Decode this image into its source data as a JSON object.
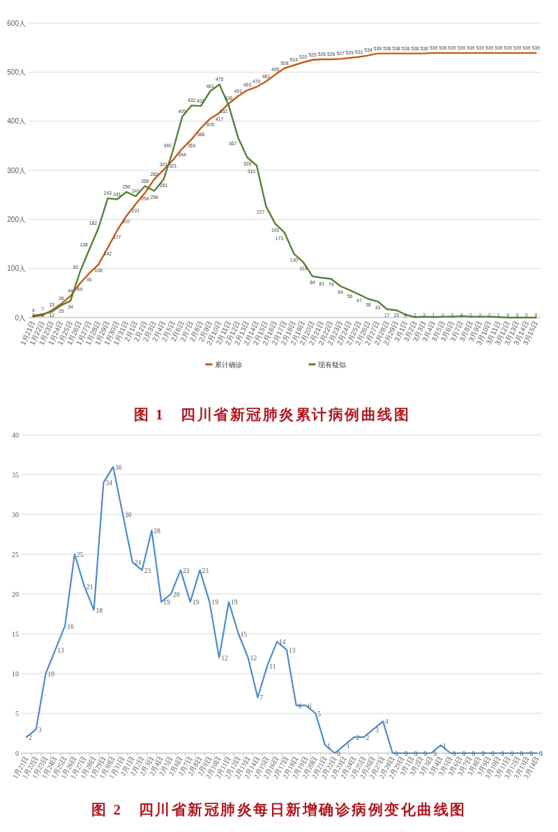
{
  "chart_data": [
    {
      "type": "line",
      "title": "图 1　四川省新冠肺炎累计病例曲线图",
      "categories": [
        "1月21日",
        "1月22日",
        "1月23日",
        "1月24日",
        "1月25日",
        "1月26日",
        "1月27日",
        "1月28日",
        "1月29日",
        "1月30日",
        "1月31日",
        "2月1日",
        "2月2日",
        "2月3日",
        "2月4日",
        "2月5日",
        "2月6日",
        "2月7日",
        "2月8日",
        "2月9日",
        "2月10日",
        "2月11日",
        "2月12日",
        "2月13日",
        "2月14日",
        "2月15日",
        "2月16日",
        "2月17日",
        "2月18日",
        "2月19日",
        "2月20日",
        "2月21日",
        "2月22日",
        "2月23日",
        "2月24日",
        "2月25日",
        "2月26日",
        "2月27日",
        "2月28日",
        "2月29日",
        "3月1日",
        "3月2日",
        "3月3日",
        "3月4日",
        "3月5日",
        "3月6日",
        "3月7日",
        "3月8日",
        "3月9日",
        "3月10日",
        "3月11日",
        "3月12日",
        "3月13日",
        "3月14日",
        "3月15日"
      ],
      "series": [
        {
          "name": "累计确诊",
          "color": "#c55a11",
          "values": [
            2,
            5,
            15,
            28,
            44,
            69,
            90,
            108,
            142,
            177,
            207,
            231,
            254,
            282,
            301,
            321,
            344,
            363,
            386,
            405,
            417,
            436,
            451,
            463,
            470,
            481,
            495,
            508,
            514,
            520,
            525,
            526,
            526,
            527,
            529,
            531,
            534,
            538,
            538,
            538,
            538,
            538,
            538,
            539,
            539,
            539,
            539,
            539,
            539,
            539,
            539,
            539,
            539,
            539,
            539
          ]
        },
        {
          "name": "现有疑似",
          "color": "#548235",
          "values": [
            4,
            7,
            12,
            25,
            34,
            92,
            138,
            182,
            243,
            241,
            256,
            247,
            268,
            258,
            281,
            340,
            409,
            432,
            431,
            461,
            475,
            432,
            367,
            326,
            310,
            227,
            191,
            173,
            130,
            113,
            84,
            81,
            79,
            64,
            56,
            47,
            38,
            33,
            17,
            15,
            6,
            1,
            2,
            1,
            2,
            2,
            3,
            2,
            2,
            2,
            1,
            0,
            0,
            0,
            0
          ]
        }
      ],
      "ylim": [
        0,
        600
      ],
      "yticks": [
        {
          "value": 0,
          "label": "0人"
        },
        {
          "value": 100,
          "label": "100人"
        },
        {
          "value": 200,
          "label": "200人"
        },
        {
          "value": 300,
          "label": "300人"
        },
        {
          "value": 400,
          "label": "400人"
        },
        {
          "value": 500,
          "label": "500人"
        },
        {
          "value": 600,
          "label": "600人"
        }
      ],
      "grid": "y",
      "legend": "bottom",
      "data_labels": true
    },
    {
      "type": "line",
      "title": "图 2　四川省新冠肺炎每日新增确诊病例变化曲线图",
      "categories": [
        "1月21日",
        "1月22日",
        "1月23日",
        "1月24日",
        "1月25日",
        "1月26日",
        "1月27日",
        "1月28日",
        "1月29日",
        "1月30日",
        "1月31日",
        "2月1日",
        "2月2日",
        "2月3日",
        "2月4日",
        "2月5日",
        "2月6日",
        "2月7日",
        "2月8日",
        "2月9日",
        "2月10日",
        "2月11日",
        "2月12日",
        "2月13日",
        "2月14日",
        "2月15日",
        "2月16日",
        "2月17日",
        "2月18日",
        "2月19日",
        "2月20日",
        "2月21日",
        "2月22日",
        "2月23日",
        "2月24日",
        "2月25日",
        "2月26日",
        "2月27日",
        "2月28日",
        "2月29日",
        "3月1日",
        "3月2日",
        "3月3日",
        "3月4日",
        "3月5日",
        "3月6日",
        "3月7日",
        "3月8日",
        "3月9日",
        "3月10日",
        "3月11日",
        "3月12日",
        "3月13日",
        "3月14日"
      ],
      "values": [
        2,
        3,
        10,
        13,
        16,
        25,
        21,
        18,
        34,
        36,
        30,
        24,
        23,
        28,
        19,
        20,
        23,
        19,
        23,
        19,
        12,
        19,
        15,
        12,
        7,
        11,
        14,
        13,
        6,
        6,
        5,
        1,
        0,
        1,
        2,
        2,
        3,
        4,
        0,
        0,
        0,
        0,
        0,
        1,
        0,
        0,
        0,
        0,
        0,
        0,
        0,
        0,
        0,
        0
      ],
      "color": "#4a8bcb",
      "ylim": [
        0,
        40
      ],
      "yticks": [
        0,
        5,
        10,
        15,
        20,
        25,
        30,
        35,
        40
      ],
      "grid": "y",
      "data_labels": true
    }
  ]
}
